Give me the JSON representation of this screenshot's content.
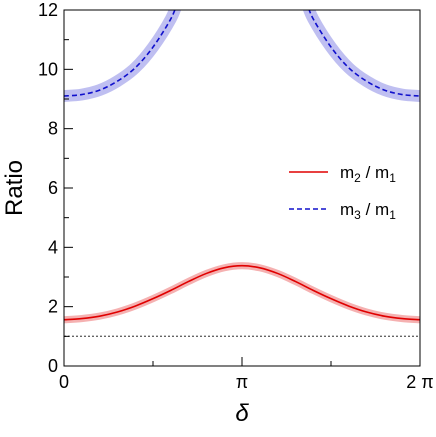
{
  "chart_data": {
    "type": "line",
    "title": "",
    "xlabel": "δ",
    "ylabel": "Ratio",
    "xlim": [
      0,
      6.2832
    ],
    "ylim": [
      0,
      12
    ],
    "x_ticks": [
      {
        "value": 0,
        "label": "0"
      },
      {
        "value": 3.1416,
        "label": "π"
      },
      {
        "value": 6.2832,
        "label": "2 π"
      }
    ],
    "x_minor_ticks": [
      1.5708,
      4.7124
    ],
    "y_ticks": [
      {
        "value": 0,
        "label": "0"
      },
      {
        "value": 2,
        "label": "2"
      },
      {
        "value": 4,
        "label": "4"
      },
      {
        "value": 6,
        "label": "6"
      },
      {
        "value": 8,
        "label": "8"
      },
      {
        "value": 10,
        "label": "10"
      },
      {
        "value": 12,
        "label": "12"
      }
    ],
    "y_minor_ticks": [
      1,
      3,
      5,
      7,
      9,
      11
    ],
    "grid": false,
    "legend_position": "right",
    "reference_line": {
      "y": 1.0,
      "style": "dotted",
      "color": "#666666"
    },
    "series": [
      {
        "name": "m₂ / m₁",
        "legend": {
          "main": "m",
          "sub1": "2",
          "sep": " / ",
          "main2": "m",
          "sub2": "1"
        },
        "color": "#e00000",
        "band_color": "#f4a8a8",
        "style": "solid",
        "x": [
          0,
          0.3142,
          0.6283,
          0.9425,
          1.2566,
          1.5708,
          1.885,
          2.1991,
          2.5133,
          2.8274,
          3.1416,
          3.4558,
          3.7699,
          4.0841,
          4.3982,
          4.7124,
          5.0265,
          5.3407,
          5.6549,
          5.969,
          6.2832
        ],
        "y": [
          1.56,
          1.6,
          1.68,
          1.82,
          2.02,
          2.27,
          2.55,
          2.85,
          3.12,
          3.31,
          3.38,
          3.31,
          3.12,
          2.85,
          2.55,
          2.27,
          2.02,
          1.82,
          1.68,
          1.6,
          1.56
        ],
        "band_halfwidth": 0.12
      },
      {
        "name": "m₃ / m₁",
        "legend": {
          "main": "m",
          "sub1": "3",
          "sep": " / ",
          "main2": "m",
          "sub2": "1"
        },
        "color": "#1010cc",
        "band_color": "#b8b8f0",
        "style": "dashed",
        "x": [
          0,
          0.3142,
          0.6283,
          0.9425,
          1.2566,
          1.5708,
          1.885,
          2.0106,
          4.2726,
          4.3982,
          4.7124,
          5.0265,
          5.3407,
          5.6549,
          5.969,
          6.2832
        ],
        "y": [
          9.1,
          9.15,
          9.3,
          9.6,
          10.05,
          10.75,
          11.7,
          12.3,
          12.3,
          11.7,
          10.75,
          10.05,
          9.6,
          9.3,
          9.15,
          9.1
        ],
        "segments": [
          [
            0,
            7
          ],
          [
            8,
            15
          ]
        ],
        "band_halfwidth": 0.2
      }
    ]
  }
}
